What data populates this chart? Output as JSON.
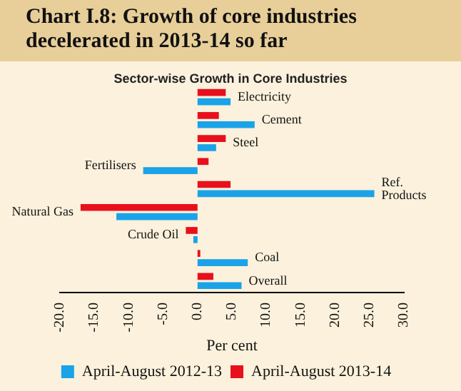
{
  "chart_data": {
    "type": "bar",
    "orientation": "horizontal",
    "title": "Chart I.8: Growth of core industries decelerated in 2013-14 so far",
    "subtitle": "Sector-wise Growth in Core Industries",
    "xlabel": "Per cent",
    "categories": [
      "Electricity",
      "Cement",
      "Steel",
      "Fertilisers",
      "Ref. Products",
      "Natural Gas",
      "Crude Oil",
      "Coal",
      "Overall"
    ],
    "series": [
      {
        "name": "April-August 2012-13",
        "color": "#1aa3e8",
        "values": [
          4.8,
          8.3,
          2.7,
          -7.9,
          25.7,
          -11.8,
          -0.6,
          7.3,
          6.4
        ]
      },
      {
        "name": "April-August 2013-14",
        "color": "#e8101c",
        "values": [
          4.1,
          3.1,
          4.1,
          1.6,
          4.8,
          -17.0,
          -1.7,
          0.4,
          2.3
        ]
      }
    ],
    "xlim": [
      -20,
      30
    ],
    "xticks": [
      {
        "value": -20,
        "label": "-20.0"
      },
      {
        "value": -15,
        "label": "-15.0"
      },
      {
        "value": -10,
        "label": "-10.0"
      },
      {
        "value": -5,
        "label": "-5.0"
      },
      {
        "value": 0,
        "label": "0.0"
      },
      {
        "value": 5,
        "label": "5.0"
      },
      {
        "value": 10,
        "label": "10.0"
      },
      {
        "value": 15,
        "label": "15.0"
      },
      {
        "value": 20,
        "label": "20.0"
      },
      {
        "value": 25,
        "label": "25.0"
      },
      {
        "value": 30,
        "label": "30.0"
      }
    ],
    "grid": false,
    "legend": "bottom"
  }
}
